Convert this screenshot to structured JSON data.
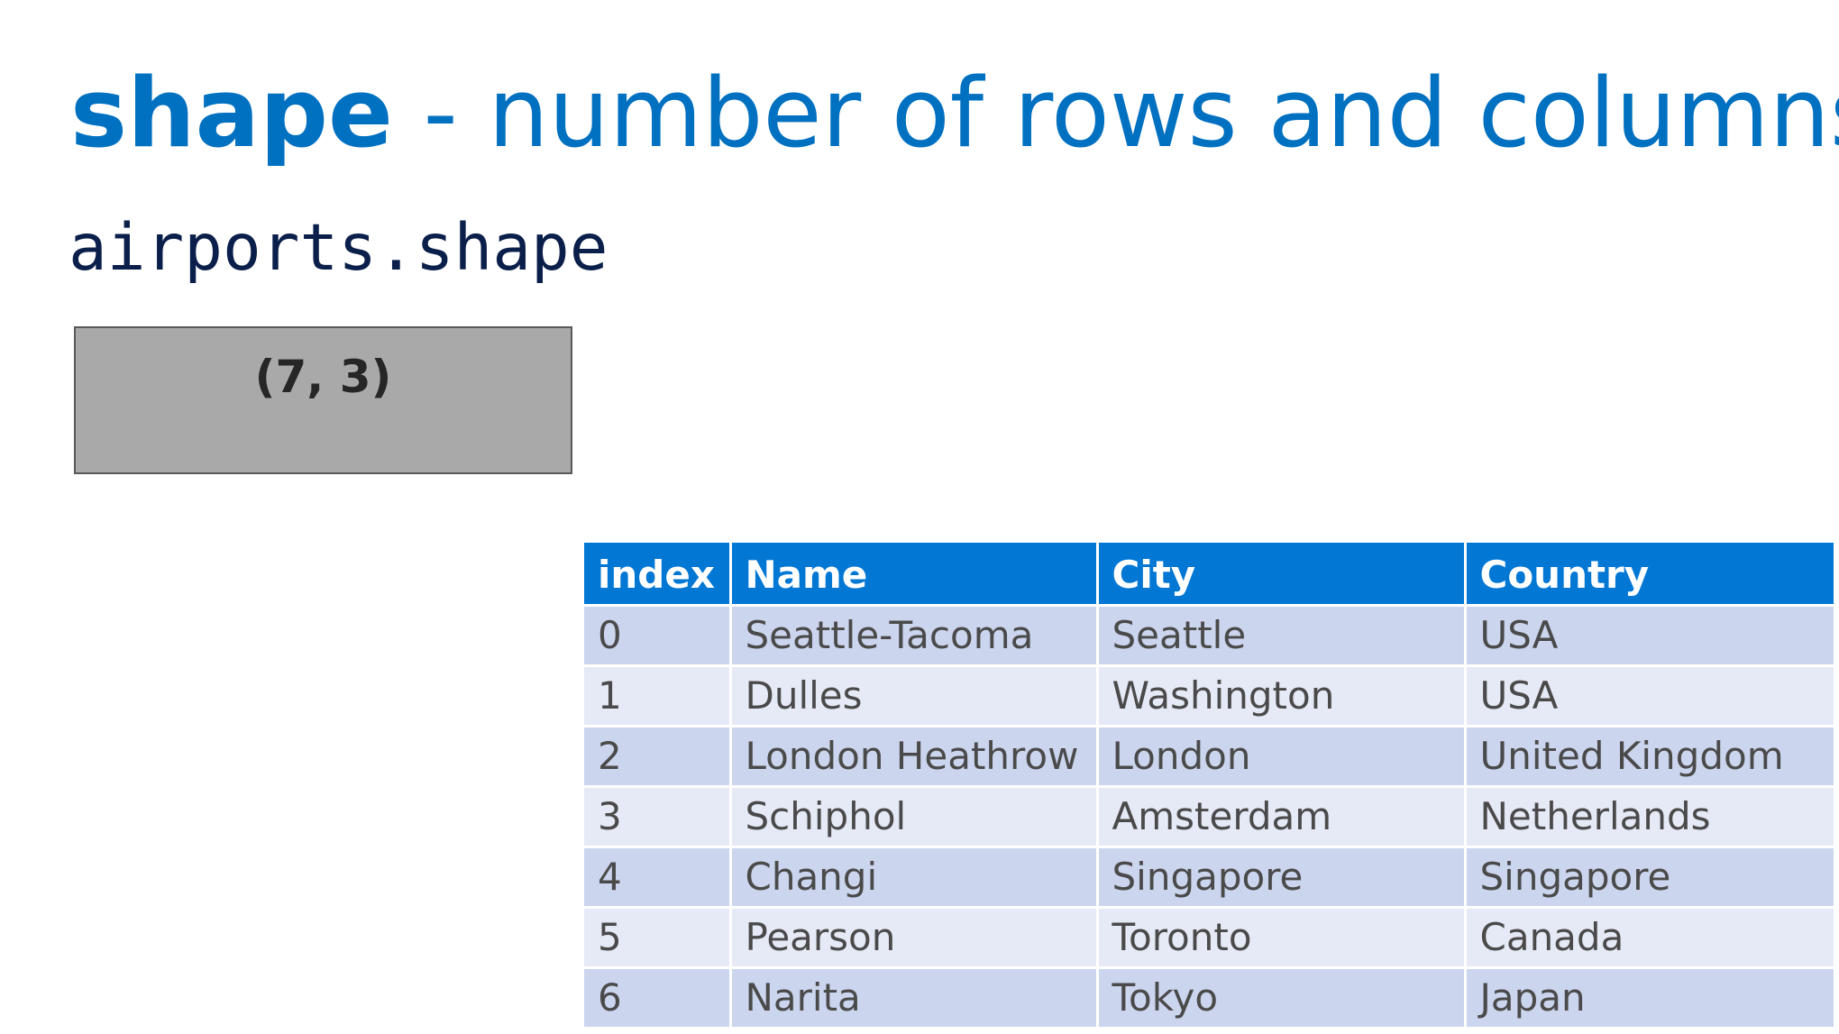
{
  "title": {
    "keyword": "shape",
    "rest": " - number of rows and columns"
  },
  "code": "airports.shape",
  "output": "(7, 3)",
  "colors": {
    "title": "#0070c0",
    "table_header": "#0277d4",
    "row_dark": "#cbd5ee",
    "row_light": "#e6eaf7",
    "output_box": "#a9a9a9"
  },
  "table": {
    "headers": [
      "index",
      "Name",
      "City",
      "Country"
    ],
    "rows": [
      [
        "0",
        "Seattle-Tacoma",
        "Seattle",
        "USA"
      ],
      [
        "1",
        "Dulles",
        "Washington",
        "USA"
      ],
      [
        "2",
        "London Heathrow",
        "London",
        "United Kingdom"
      ],
      [
        "3",
        "Schiphol",
        "Amsterdam",
        "Netherlands"
      ],
      [
        "4",
        "Changi",
        "Singapore",
        "Singapore"
      ],
      [
        "5",
        "Pearson",
        "Toronto",
        "Canada"
      ],
      [
        "6",
        "Narita",
        "Tokyo",
        "Japan"
      ]
    ]
  }
}
